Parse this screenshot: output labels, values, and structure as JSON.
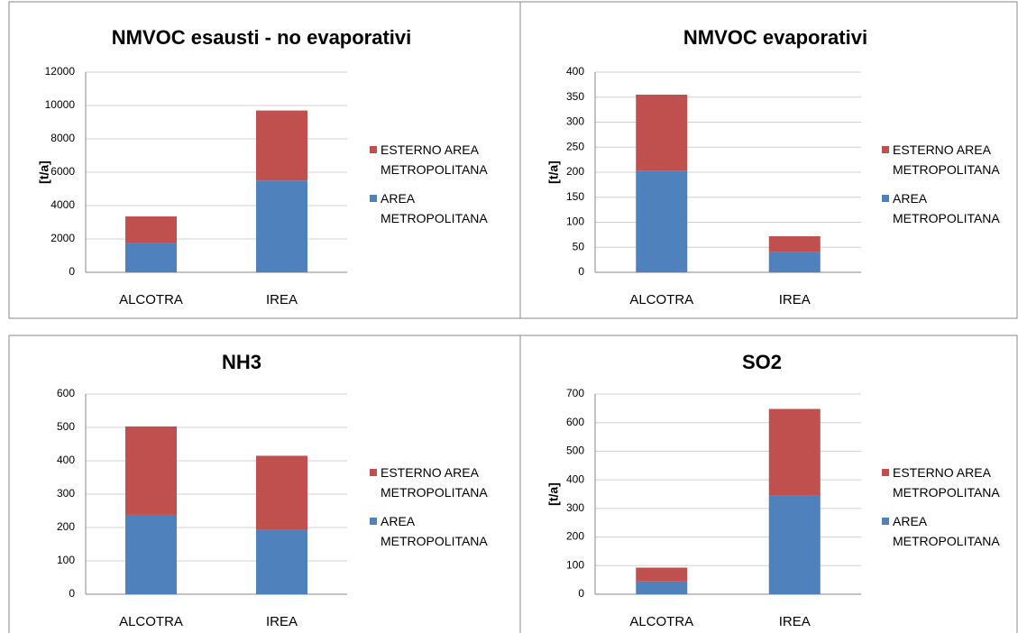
{
  "chart_data": [
    {
      "type": "bar",
      "stacked": true,
      "title": "NMVOC esausti - no evaporativi",
      "y_label": "[t/a]",
      "categories": [
        "ALCOTRA",
        "IREA"
      ],
      "series": [
        {
          "name": "AREA METROPOLITANA",
          "color": "#4f81bd",
          "values": [
            1750,
            5500
          ]
        },
        {
          "name": "ESTERNO AREA METROPOLITANA",
          "color": "#c0504d",
          "values": [
            1600,
            4200
          ]
        }
      ],
      "ylim": [
        0,
        12000
      ],
      "yticks": [
        0,
        2000,
        4000,
        6000,
        8000,
        10000,
        12000
      ],
      "grid": true
    },
    {
      "type": "bar",
      "stacked": true,
      "title": "NMVOC evaporativi",
      "y_label": "[t/a]",
      "categories": [
        "ALCOTRA",
        "IREA"
      ],
      "series": [
        {
          "name": "AREA METROPOLITANA",
          "color": "#4f81bd",
          "values": [
            203,
            40
          ]
        },
        {
          "name": "ESTERNO AREA METROPOLITANA",
          "color": "#c0504d",
          "values": [
            152,
            32
          ]
        }
      ],
      "ylim": [
        0,
        400
      ],
      "yticks": [
        0,
        50,
        100,
        150,
        200,
        250,
        300,
        350,
        400
      ],
      "grid": true
    },
    {
      "type": "bar",
      "stacked": true,
      "title": "NH3",
      "categories": [
        "ALCOTRA",
        "IREA"
      ],
      "series": [
        {
          "name": "AREA METROPOLITANA",
          "color": "#4f81bd",
          "values": [
            238,
            193
          ]
        },
        {
          "name": "ESTERNO AREA METROPOLITANA",
          "color": "#c0504d",
          "values": [
            265,
            222
          ]
        }
      ],
      "ylim": [
        0,
        600
      ],
      "yticks": [
        0,
        100,
        200,
        300,
        400,
        500,
        600
      ],
      "grid": true
    },
    {
      "type": "bar",
      "stacked": true,
      "title": "SO2",
      "y_label": "[t/a]",
      "categories": [
        "ALCOTRA",
        "IREA"
      ],
      "series": [
        {
          "name": "AREA METROPOLITANA",
          "color": "#4f81bd",
          "values": [
            45,
            345
          ]
        },
        {
          "name": "ESTERNO AREA METROPOLITANA",
          "color": "#c0504d",
          "values": [
            48,
            303
          ]
        }
      ],
      "ylim": [
        0,
        700
      ],
      "yticks": [
        0,
        100,
        200,
        300,
        400,
        500,
        600,
        700
      ],
      "grid": true
    }
  ]
}
